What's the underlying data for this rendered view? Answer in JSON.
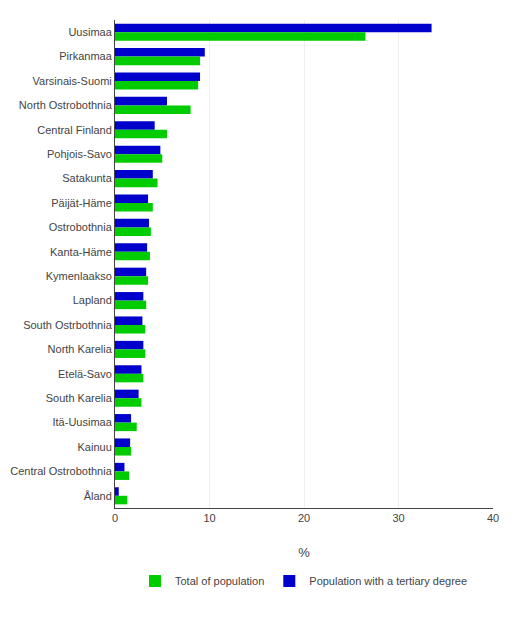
{
  "chart_data": {
    "type": "bar",
    "orientation": "horizontal",
    "categories": [
      "Uusimaa",
      "Pirkanmaa",
      "Varsinais-Suomi",
      "North Ostrobothnia",
      "Central Finland",
      "Pohjois-Savo",
      "Satakunta",
      "Päijät-Häme",
      "Ostrobothnia",
      "Kanta-Häme",
      "Kymenlaakso",
      "Lapland",
      "South Ostrbothnia",
      "North Karelia",
      "Etelä-Savo",
      "South Karelia",
      "Itä-Uusimaa",
      "Kainuu",
      "Central Ostrobothnia",
      "Åland"
    ],
    "series": [
      {
        "name": "Total of population",
        "color": "#00cc00",
        "values": [
          26.5,
          9.0,
          8.8,
          8.0,
          5.5,
          5.0,
          4.5,
          4.0,
          3.8,
          3.7,
          3.5,
          3.3,
          3.2,
          3.2,
          3.0,
          2.8,
          2.3,
          1.7,
          1.5,
          1.3
        ]
      },
      {
        "name": "Population with a tertiary degree",
        "color": "#0000cc",
        "values": [
          33.5,
          9.5,
          9.0,
          5.5,
          4.2,
          4.8,
          4.0,
          3.5,
          3.6,
          3.4,
          3.3,
          3.0,
          2.9,
          3.0,
          2.8,
          2.5,
          1.7,
          1.6,
          1.0,
          0.4
        ]
      }
    ],
    "xlabel": "%",
    "xlim": [
      0,
      40
    ],
    "xticks": [
      0,
      10,
      20,
      30,
      40
    ],
    "grid": true,
    "legend": "bottom"
  }
}
